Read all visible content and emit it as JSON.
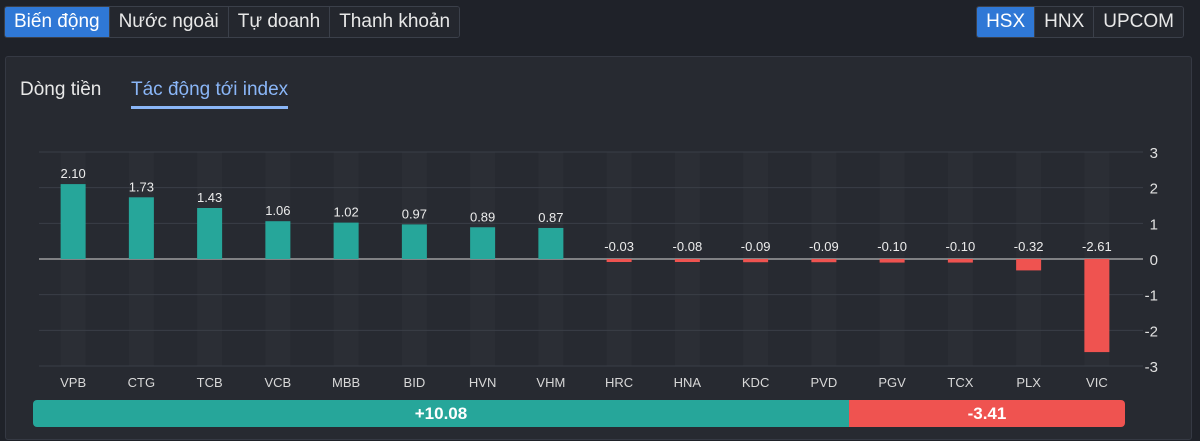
{
  "top_tabs": [
    {
      "label": "Biến động",
      "active": true
    },
    {
      "label": "Nước ngoài",
      "active": false
    },
    {
      "label": "Tự doanh",
      "active": false
    },
    {
      "label": "Thanh khoản",
      "active": false
    }
  ],
  "exchange_tabs": [
    {
      "label": "HSX",
      "active": true
    },
    {
      "label": "HNX",
      "active": false
    },
    {
      "label": "UPCOM",
      "active": false
    }
  ],
  "sub_tabs": [
    {
      "label": "Dòng tiền",
      "active": false
    },
    {
      "label": "Tác động tới index",
      "active": true
    }
  ],
  "colors": {
    "positive": "#26a69a",
    "negative": "#ef5350",
    "accent": "#2f78d6"
  },
  "chart_data": {
    "type": "bar",
    "categories": [
      "VPB",
      "CTG",
      "TCB",
      "VCB",
      "MBB",
      "BID",
      "HVN",
      "VHM",
      "HRC",
      "HNA",
      "KDC",
      "PVD",
      "PGV",
      "TCX",
      "PLX",
      "VIC"
    ],
    "values": [
      2.1,
      1.73,
      1.43,
      1.06,
      1.02,
      0.97,
      0.89,
      0.87,
      -0.03,
      -0.08,
      -0.09,
      -0.09,
      -0.1,
      -0.1,
      -0.32,
      -2.61
    ],
    "value_labels": [
      "2.10",
      "1.73",
      "1.43",
      "1.06",
      "1.02",
      "0.97",
      "0.89",
      "0.87",
      "-0.03",
      "-0.08",
      "-0.09",
      "-0.09",
      "-0.10",
      "-0.10",
      "-0.32",
      "-2.61"
    ],
    "ylim": [
      -3,
      3
    ],
    "yticks": [
      3,
      2,
      1,
      0,
      -1,
      -2,
      -3
    ],
    "grid": true
  },
  "summary": {
    "positive_label": "+10.08",
    "negative_label": "-3.41",
    "positive_value": 10.08,
    "negative_value": 3.41
  }
}
